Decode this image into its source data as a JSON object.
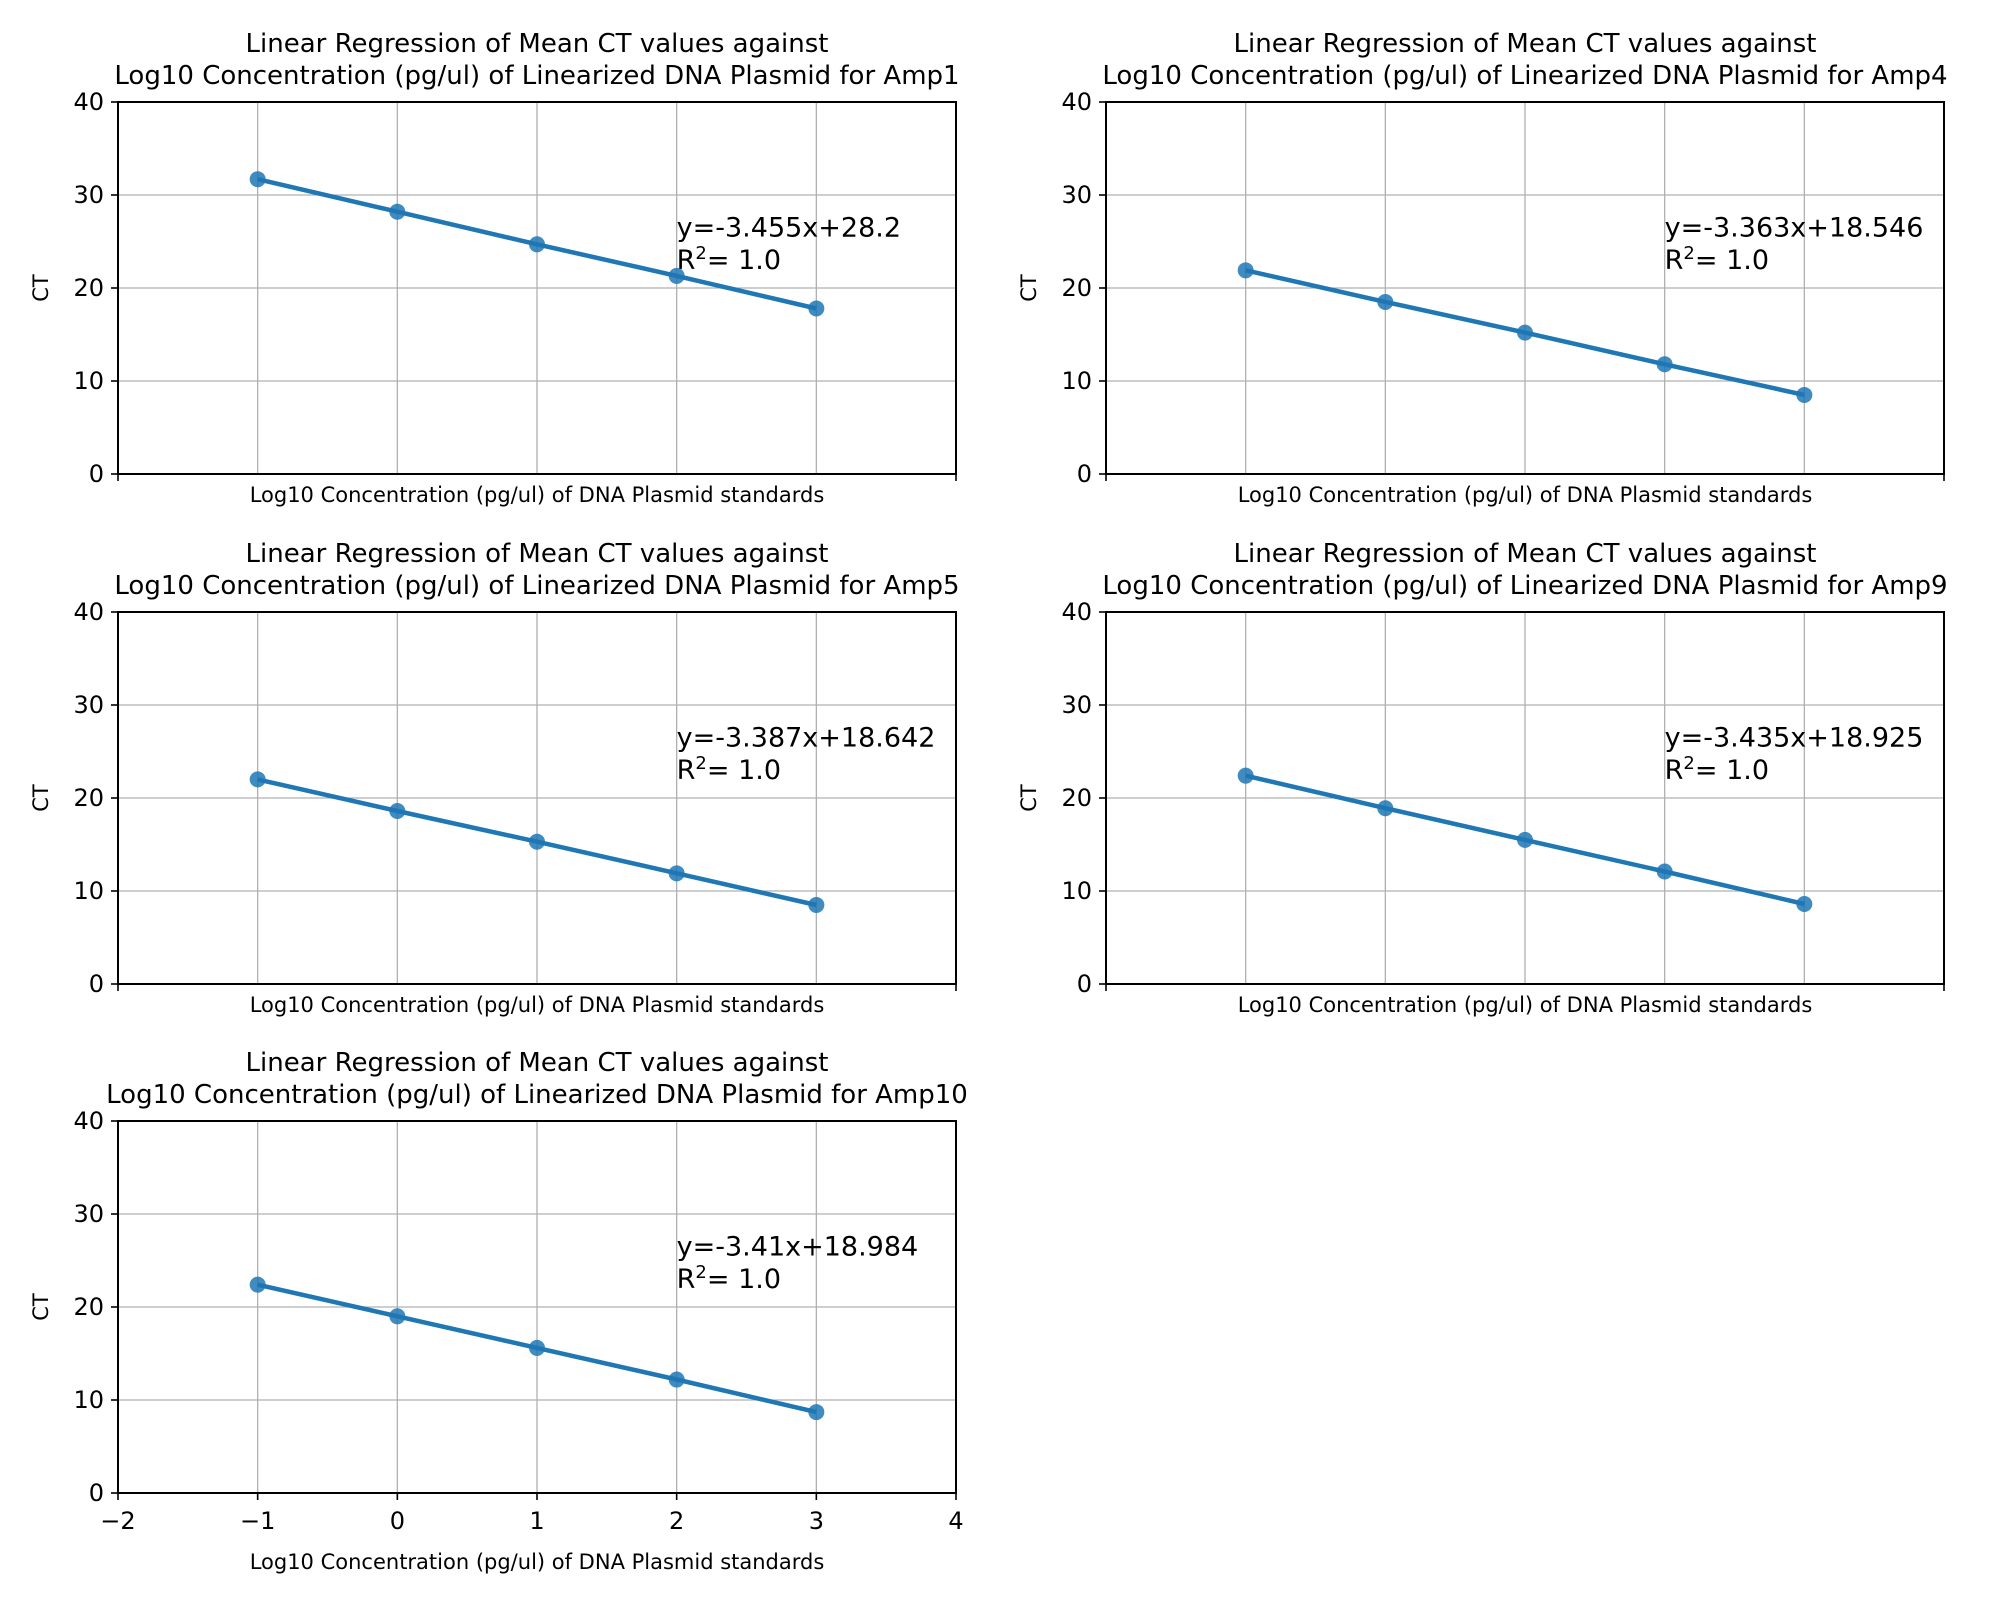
{
  "figure": {
    "background": "#ffffff",
    "line_color": "#1f77b4",
    "grid_color": "#b0b0b0"
  },
  "chart_data": [
    {
      "type": "line",
      "title_line1": "Linear Regression of Mean CT values against",
      "title_line2": "Log10 Concentration (pg/ul) of Linearized DNA Plasmid for Amp1",
      "xlabel": "Log10 Concentration (pg/ul) of DNA Plasmid standards",
      "ylabel": "CT",
      "x": [
        -1,
        0,
        1,
        2,
        3
      ],
      "series": [
        {
          "values": [
            31.7,
            28.2,
            24.7,
            21.3,
            17.8
          ]
        }
      ],
      "equation": "y=-3.455x+28.2",
      "r2_prefix": "R",
      "r2_exponent": "2",
      "r2_value": "= 1.0",
      "xlim": [
        -2,
        4
      ],
      "ylim": [
        0,
        40
      ],
      "yticks": [
        "0",
        "10",
        "20",
        "30",
        "40"
      ],
      "xticks": [],
      "grid": true
    },
    {
      "type": "line",
      "title_line1": "Linear Regression of Mean CT values against",
      "title_line2": "Log10 Concentration (pg/ul) of Linearized DNA Plasmid for Amp4",
      "xlabel": "Log10 Concentration (pg/ul) of DNA Plasmid standards",
      "ylabel": "CT",
      "x": [
        -1,
        0,
        1,
        2,
        3
      ],
      "series": [
        {
          "values": [
            21.9,
            18.5,
            15.2,
            11.8,
            8.5
          ]
        }
      ],
      "equation": "y=-3.363x+18.546",
      "r2_prefix": "R",
      "r2_exponent": "2",
      "r2_value": "= 1.0",
      "xlim": [
        -2,
        4
      ],
      "ylim": [
        0,
        40
      ],
      "yticks": [
        "0",
        "10",
        "20",
        "30",
        "40"
      ],
      "xticks": [],
      "grid": true
    },
    {
      "type": "line",
      "title_line1": "Linear Regression of Mean CT values against",
      "title_line2": "Log10 Concentration (pg/ul) of Linearized DNA Plasmid for Amp5",
      "xlabel": "Log10 Concentration (pg/ul) of DNA Plasmid standards",
      "ylabel": "CT",
      "x": [
        -1,
        0,
        1,
        2,
        3
      ],
      "series": [
        {
          "values": [
            22.0,
            18.6,
            15.3,
            11.9,
            8.5
          ]
        }
      ],
      "equation": "y=-3.387x+18.642",
      "r2_prefix": "R",
      "r2_exponent": "2",
      "r2_value": "= 1.0",
      "xlim": [
        -2,
        4
      ],
      "ylim": [
        0,
        40
      ],
      "yticks": [
        "0",
        "10",
        "20",
        "30",
        "40"
      ],
      "xticks": [],
      "grid": true
    },
    {
      "type": "line",
      "title_line1": "Linear Regression of Mean CT values against",
      "title_line2": "Log10 Concentration (pg/ul) of Linearized DNA Plasmid for Amp9",
      "xlabel": "Log10 Concentration (pg/ul) of DNA Plasmid standards",
      "ylabel": "CT",
      "x": [
        -1,
        0,
        1,
        2,
        3
      ],
      "series": [
        {
          "values": [
            22.4,
            18.9,
            15.5,
            12.1,
            8.6
          ]
        }
      ],
      "equation": "y=-3.435x+18.925",
      "r2_prefix": "R",
      "r2_exponent": "2",
      "r2_value": "= 1.0",
      "xlim": [
        -2,
        4
      ],
      "ylim": [
        0,
        40
      ],
      "yticks": [
        "0",
        "10",
        "20",
        "30",
        "40"
      ],
      "xticks": [],
      "grid": true
    },
    {
      "type": "line",
      "title_line1": "Linear Regression of Mean CT values against",
      "title_line2": "Log10 Concentration (pg/ul) of Linearized DNA Plasmid for Amp10",
      "xlabel": "Log10 Concentration (pg/ul) of DNA Plasmid standards",
      "ylabel": "CT",
      "x": [
        -1,
        0,
        1,
        2,
        3
      ],
      "series": [
        {
          "values": [
            22.4,
            19.0,
            15.6,
            12.2,
            8.7
          ]
        }
      ],
      "equation": "y=-3.41x+18.984",
      "r2_prefix": "R",
      "r2_exponent": "2",
      "r2_value": "= 1.0",
      "xlim": [
        -2,
        4
      ],
      "ylim": [
        0,
        40
      ],
      "yticks": [
        "0",
        "10",
        "20",
        "30",
        "40"
      ],
      "xticks": [
        "−2",
        "−1",
        "0",
        "1",
        "2",
        "3",
        "4"
      ],
      "grid": true
    }
  ]
}
